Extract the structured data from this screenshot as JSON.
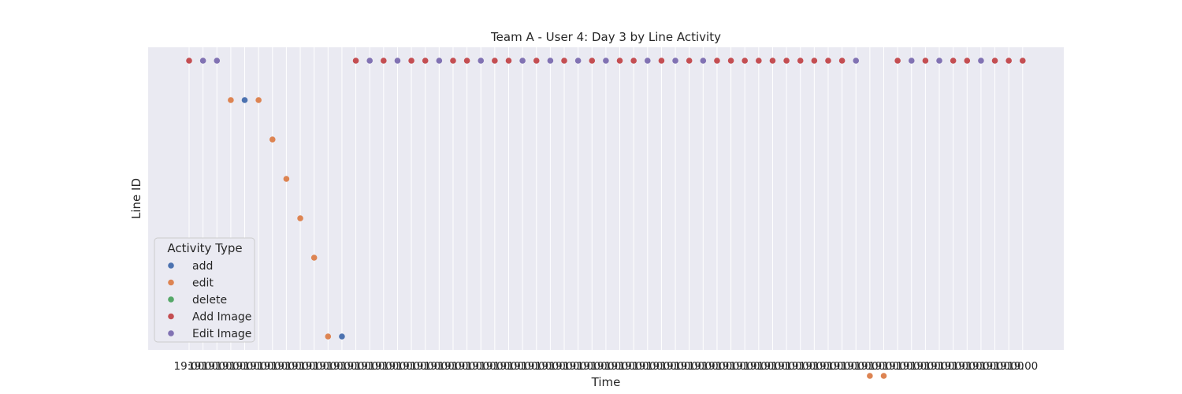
{
  "chart_data": {
    "type": "scatter",
    "title": "Team A - User 4: Day 3 by Line Activity",
    "xlabel": "Time",
    "ylabel": "Line ID",
    "x_tick_labels": [
      "19:00",
      "19:00",
      "19:00",
      "19:00",
      "19:00",
      "19:00",
      "19:00",
      "19:00",
      "19:00",
      "19:00",
      "19:00",
      "19:00",
      "19:00",
      "19:00",
      "19:00",
      "19:00",
      "19:00",
      "19:00",
      "19:00",
      "19:00",
      "19:00",
      "19:00",
      "19:00",
      "19:00",
      "19:00",
      "19:00",
      "19:00",
      "19:00",
      "19:00",
      "19:00",
      "19:00",
      "19:00",
      "19:00",
      "19:00",
      "19:00",
      "19:00",
      "19:00",
      "19:00",
      "19:00",
      "19:00",
      "19:00",
      "19:00",
      "19:00",
      "19:00",
      "19:00",
      "19:00",
      "19:00",
      "19:00",
      "19:00",
      "19:00",
      "19:00",
      "19:00",
      "19:00",
      "19:00",
      "19:00",
      "19:00",
      "19:00",
      "19:00",
      "19:00",
      "19:00",
      "19:00"
    ],
    "y_categories": 8,
    "grid": true,
    "legend": {
      "title": "Activity Type",
      "placement": "lower-left",
      "entries": [
        "add",
        "edit",
        "delete",
        "Add Image",
        "Edit Image"
      ]
    },
    "colors": {
      "add": "#4c72b0",
      "edit": "#dd8452",
      "delete": "#55a868",
      "Add Image": "#c44e52",
      "Edit Image": "#8172b3",
      "plot_bg": "#eaeaf2",
      "grid": "#ffffff"
    },
    "series": [
      {
        "name": "add",
        "points": [
          [
            4,
            1
          ],
          [
            11,
            7
          ]
        ]
      },
      {
        "name": "edit",
        "points": [
          [
            3,
            1
          ],
          [
            5,
            1
          ],
          [
            6,
            2
          ],
          [
            7,
            3
          ],
          [
            8,
            4
          ],
          [
            9,
            5
          ],
          [
            10,
            7
          ],
          [
            49,
            8
          ],
          [
            50,
            8
          ]
        ]
      },
      {
        "name": "delete",
        "points": []
      },
      {
        "name": "Add Image",
        "points": [
          [
            0,
            0
          ],
          [
            12,
            0
          ],
          [
            14,
            0
          ],
          [
            16,
            0
          ],
          [
            17,
            0
          ],
          [
            19,
            0
          ],
          [
            20,
            0
          ],
          [
            22,
            0
          ],
          [
            23,
            0
          ],
          [
            25,
            0
          ],
          [
            27,
            0
          ],
          [
            29,
            0
          ],
          [
            31,
            0
          ],
          [
            32,
            0
          ],
          [
            34,
            0
          ],
          [
            36,
            0
          ],
          [
            38,
            0
          ],
          [
            39,
            0
          ],
          [
            40,
            0
          ],
          [
            41,
            0
          ],
          [
            42,
            0
          ],
          [
            43,
            0
          ],
          [
            44,
            0
          ],
          [
            45,
            0
          ],
          [
            46,
            0
          ],
          [
            47,
            0
          ],
          [
            51,
            0
          ],
          [
            53,
            0
          ],
          [
            55,
            0
          ],
          [
            56,
            0
          ],
          [
            58,
            0
          ],
          [
            59,
            0
          ],
          [
            60,
            0
          ]
        ]
      },
      {
        "name": "Edit Image",
        "points": [
          [
            1,
            0
          ],
          [
            2,
            0
          ],
          [
            13,
            0
          ],
          [
            15,
            0
          ],
          [
            18,
            0
          ],
          [
            21,
            0
          ],
          [
            24,
            0
          ],
          [
            26,
            0
          ],
          [
            28,
            0
          ],
          [
            30,
            0
          ],
          [
            33,
            0
          ],
          [
            35,
            0
          ],
          [
            37,
            0
          ],
          [
            48,
            0
          ],
          [
            52,
            0
          ],
          [
            54,
            0
          ],
          [
            57,
            0
          ]
        ]
      }
    ]
  }
}
